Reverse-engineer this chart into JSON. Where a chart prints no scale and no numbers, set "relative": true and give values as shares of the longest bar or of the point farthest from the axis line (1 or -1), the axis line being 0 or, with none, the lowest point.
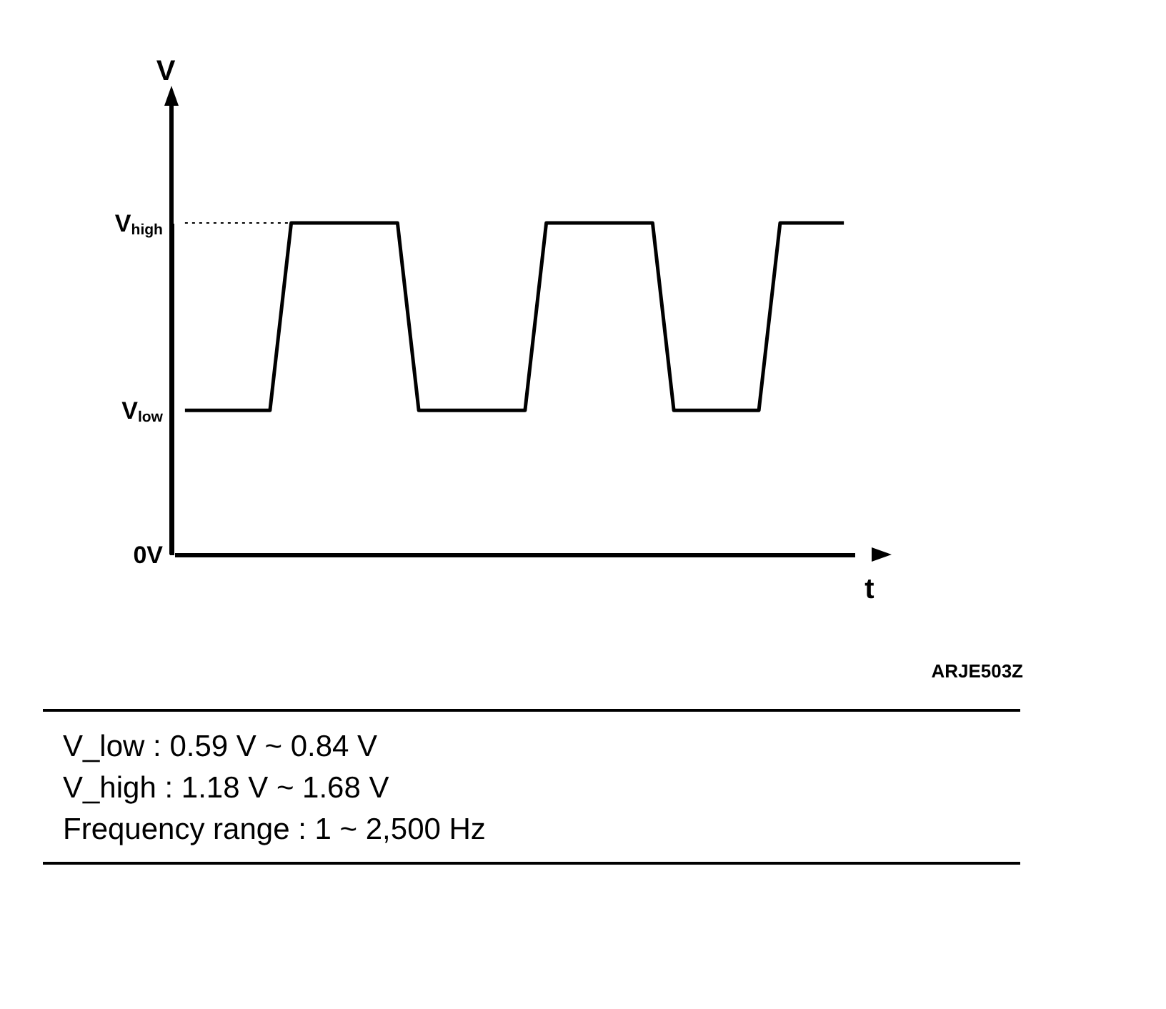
{
  "chart_data": {
    "type": "line",
    "xlabel": "t",
    "ylabel": "V",
    "relative": true,
    "categories": [
      null,
      null,
      null,
      null,
      null,
      null,
      null,
      null,
      null,
      null,
      null,
      null,
      null,
      null,
      null,
      null,
      null,
      null,
      null,
      null,
      null,
      null,
      null,
      null,
      null,
      null,
      null,
      null,
      null,
      null,
      null,
      null
    ],
    "series": [
      {
        "color": "#000000",
        "values": [
          0.435,
          0.435,
          0.435,
          0.435,
          0.435,
          1,
          1,
          1,
          1,
          1,
          1,
          0.435,
          0.435,
          0.435,
          0.435,
          0.435,
          0.435,
          1,
          1,
          1,
          1,
          1,
          1,
          0.435,
          0.435,
          0.435,
          0.435,
          0.435,
          1,
          1,
          1,
          1
        ]
      }
    ],
    "grid": false,
    "marker": "none",
    "line_style": "solid",
    "ref_lines": [
      {
        "axis": "y",
        "value": 1,
        "label": null,
        "line_style": "dotted",
        "color": "#000000"
      }
    ],
    "annotations": [
      "0V",
      "V$_{low}$",
      "V$_{high}$",
      "ARJE503Z",
      "V_low :  0.59 V ~ 0.84 V",
      "V_high :  1.18 V ~ 1.68 V",
      "Frequency range :  1 ~ 2,500 Hz"
    ]
  }
}
